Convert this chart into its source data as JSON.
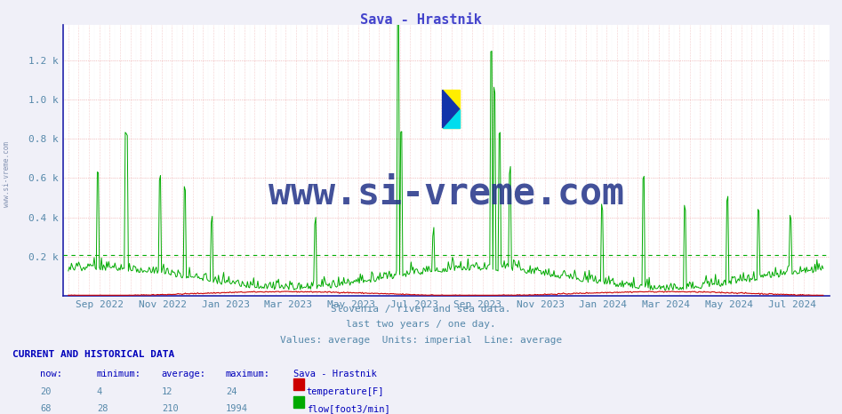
{
  "title": "Sava - Hrastnik",
  "title_color": "#4444cc",
  "background_color": "#f0f0f8",
  "plot_bg_color": "#ffffff",
  "yticks": [
    0,
    200,
    400,
    600,
    800,
    1000,
    1200
  ],
  "ytick_labels": [
    "",
    "0.2 k",
    "0.4 k",
    "0.6 k",
    "0.8 k",
    "1.0 k",
    "1.2 k"
  ],
  "ylim": [
    0,
    1380
  ],
  "tick_color": "#5588aa",
  "grid_color_red": "#dd6666",
  "grid_color_grey": "#ccccdd",
  "axis_color": "#2222aa",
  "temp_color": "#cc0000",
  "flow_color": "#00aa00",
  "average_flow_line": 210,
  "footnote_lines": [
    "Slovenia / river and sea data.",
    "last two years / one day.",
    "Values: average  Units: imperial  Line: average"
  ],
  "footnote_color": "#5588aa",
  "table_title": "CURRENT AND HISTORICAL DATA",
  "table_color": "#0000bb",
  "table_headers": [
    "now:",
    "minimum:",
    "average:",
    "maximum:",
    "Sava - Hrastnik"
  ],
  "table_temp": [
    "20",
    "4",
    "12",
    "24",
    "temperature[F]"
  ],
  "table_flow": [
    "68",
    "28",
    "210",
    "1994",
    "flow[foot3/min]"
  ],
  "watermark": "www.si-vreme.com",
  "watermark_color": "#223388",
  "sidebar_text": "www.si-vreme.com",
  "sidebar_color": "#7788aa",
  "x_tick_labels": [
    "Sep 2022",
    "Nov 2022",
    "Jan 2023",
    "Mar 2023",
    "May 2023",
    "Jul 2023",
    "Sep 2023",
    "Nov 2023",
    "Jan 2024",
    "Mar 2024",
    "May 2024",
    "Jul 2024"
  ],
  "label_days": [
    30,
    91,
    152,
    212,
    273,
    334,
    395,
    456,
    516,
    577,
    638,
    699
  ]
}
